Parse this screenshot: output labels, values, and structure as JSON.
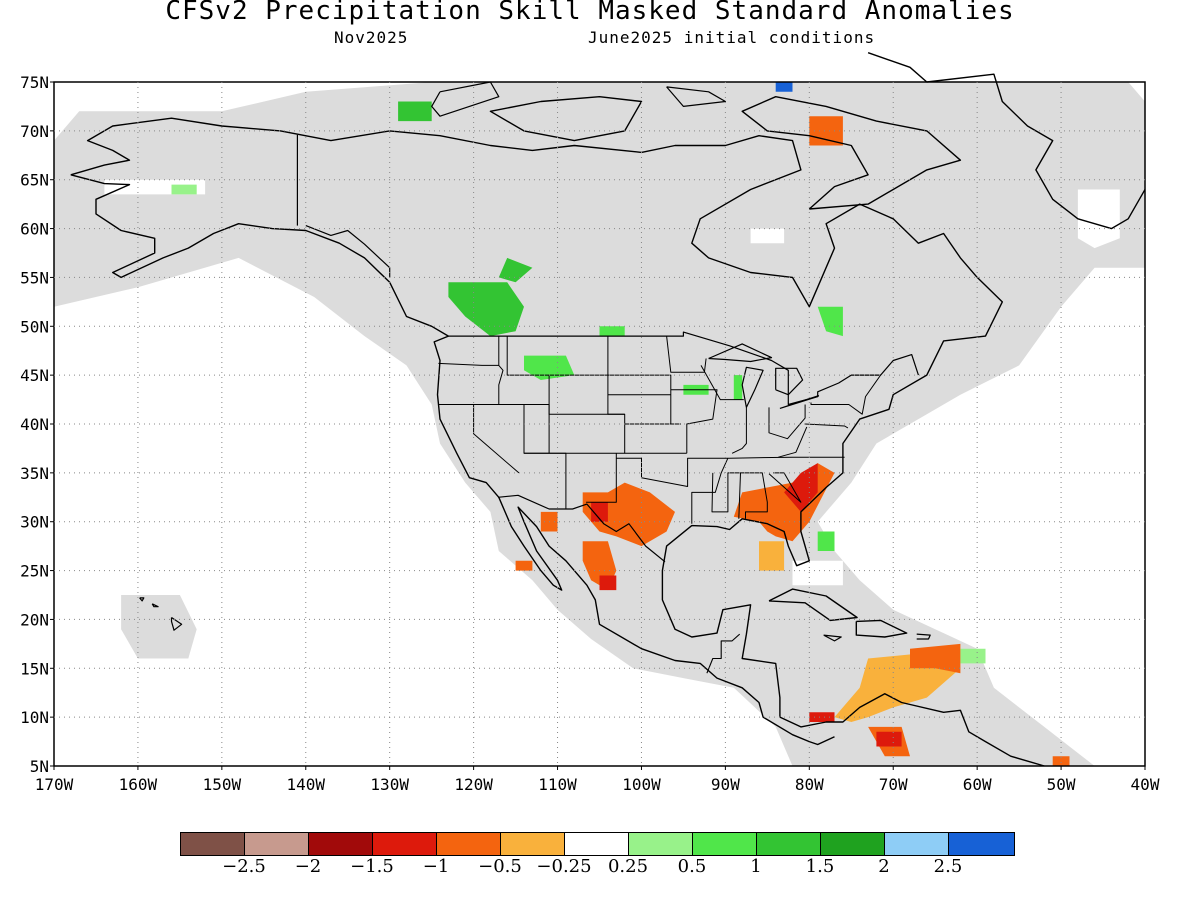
{
  "title": "CFSv2 Precipitation Skill Masked Standard Anomalies",
  "subtitle_left": "Nov2025",
  "subtitle_right": "June2025 initial conditions",
  "map": {
    "lon_range": [
      -170,
      -40
    ],
    "lat_range": [
      5,
      75
    ],
    "lat_labels": [
      "75N",
      "70N",
      "65N",
      "60N",
      "55N",
      "50N",
      "45N",
      "40N",
      "35N",
      "30N",
      "25N",
      "20N",
      "15N",
      "10N",
      "5N"
    ],
    "lon_labels": [
      "170W",
      "160W",
      "150W",
      "140W",
      "130W",
      "120W",
      "110W",
      "100W",
      "90W",
      "80W",
      "70W",
      "60W",
      "50W",
      "40W"
    ],
    "colors": {
      "masked": "#dcdcdc",
      "ocean_unmasked": "#ffffff",
      "coast": "#000000"
    }
  },
  "legend": {
    "colors": [
      "#7f5147",
      "#c79a8e",
      "#a10a0a",
      "#dd1a0c",
      "#f4640f",
      "#f9b13c",
      "#ffffff",
      "#98f28a",
      "#50e64a",
      "#33c433",
      "#1fa21f",
      "#8ecdf6",
      "#1761d6"
    ],
    "labels": [
      "−2.5",
      "−2",
      "−1.5",
      "−1",
      "−0.5",
      "−0.25",
      "0.25",
      "0.5",
      "1",
      "1.5",
      "2",
      "2.5"
    ]
  }
}
